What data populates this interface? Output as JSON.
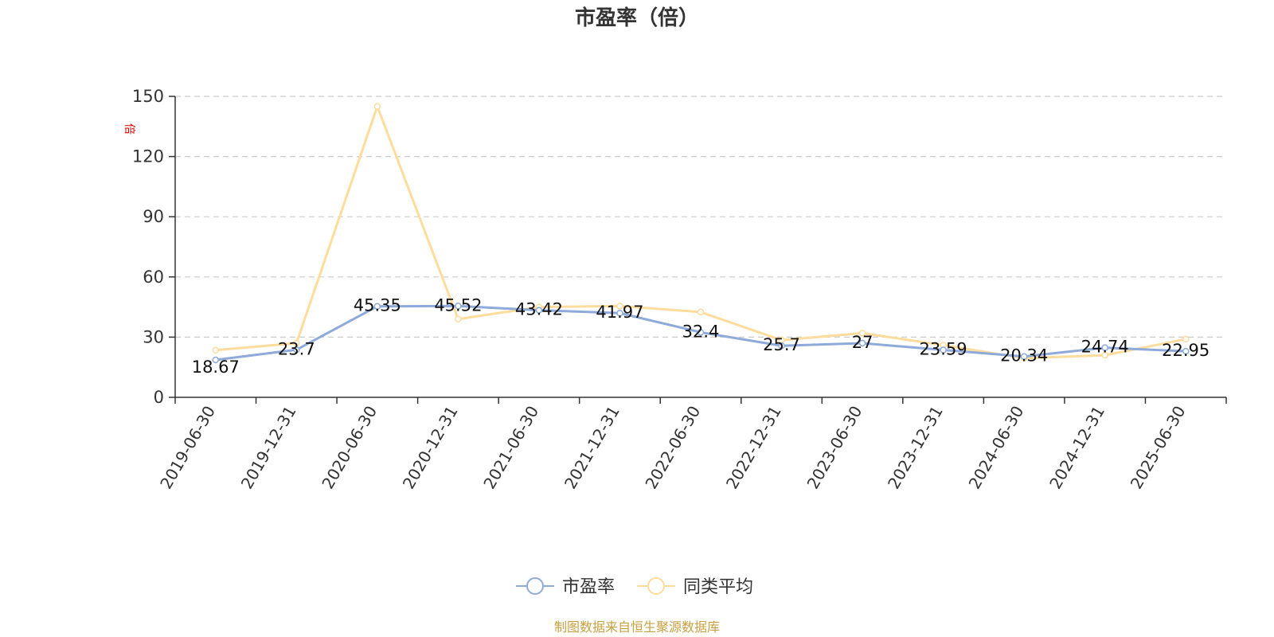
{
  "chart_data": {
    "type": "line",
    "title": "市盈率（倍）",
    "ylabel": "倍",
    "xlabel": "",
    "ylim": [
      0,
      150
    ],
    "yticks": [
      0,
      30,
      60,
      90,
      120,
      150
    ],
    "grid": true,
    "legend_position": "bottom-center",
    "categories": [
      "2019-06-30",
      "2019-12-31",
      "2020-06-30",
      "2020-12-31",
      "2021-06-30",
      "2021-12-31",
      "2022-06-30",
      "2022-12-31",
      "2023-06-30",
      "2023-12-31",
      "2024-06-30",
      "2024-12-31",
      "2025-06-30"
    ],
    "series": [
      {
        "name": "市盈率",
        "color": "#8eaadb",
        "values": [
          18.67,
          23.7,
          45.35,
          45.52,
          43.42,
          41.97,
          32.4,
          25.7,
          27,
          23.59,
          20.34,
          24.74,
          22.95
        ],
        "labels": [
          "18.67",
          "23.7",
          "45.35",
          "45.52",
          "43.42",
          "41.97",
          "32.4",
          "25.7",
          "27",
          "23.59",
          "20.34",
          "24.74",
          "22.95"
        ]
      },
      {
        "name": "同类平均",
        "color": "#fddc9c",
        "values": [
          23.5,
          27,
          145,
          39,
          45,
          45.5,
          42.5,
          28.5,
          32,
          26,
          19.5,
          21,
          29
        ]
      }
    ]
  },
  "source_note": "制图数据来自恒生聚源数据库"
}
